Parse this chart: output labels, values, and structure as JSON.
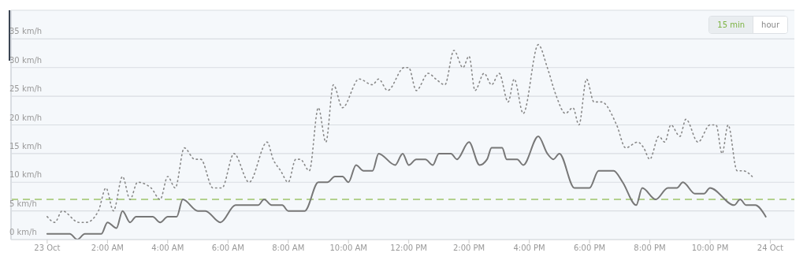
{
  "chart_data": {
    "type": "line",
    "annotations": [
      "15 min",
      "hour"
    ],
    "xlim": [
      -1.2,
      24.8
    ],
    "xticks": [
      {
        "value": 0,
        "label": "23 Oct"
      },
      {
        "value": 2,
        "label": "2:00 AM"
      },
      {
        "value": 4,
        "label": "4:00 AM"
      },
      {
        "value": 6,
        "label": "6:00 AM"
      },
      {
        "value": 8,
        "label": "8:00 AM"
      },
      {
        "value": 10,
        "label": "10:00 AM"
      },
      {
        "value": 12,
        "label": "12:00 PM"
      },
      {
        "value": 14,
        "label": "2:00 PM"
      },
      {
        "value": 16,
        "label": "4:00 PM"
      },
      {
        "value": 18,
        "label": "6:00 PM"
      },
      {
        "value": 20,
        "label": "8:00 PM"
      },
      {
        "value": 22,
        "label": "10:00 PM"
      },
      {
        "value": 24,
        "label": "24 Oct"
      }
    ],
    "ylim": [
      0,
      40
    ],
    "yticks": [
      {
        "value": 0,
        "label": "0 km/h"
      },
      {
        "value": 5,
        "label": "5 km/h"
      },
      {
        "value": 10,
        "label": "10 km/h"
      },
      {
        "value": 15,
        "label": "15 km/h"
      },
      {
        "value": 20,
        "label": "20 km/h"
      },
      {
        "value": 25,
        "label": "25 km/h"
      },
      {
        "value": 30,
        "label": "30 km/h"
      },
      {
        "value": 35,
        "label": "35 km/h"
      }
    ],
    "grid": "y",
    "marker": "none",
    "ref_lines": [
      {
        "axis": "y",
        "value": 7,
        "color": "#9dc36b",
        "line_style": "dashed"
      }
    ],
    "series": [
      {
        "color": "#777777",
        "line_style": "solid",
        "x": [
          0,
          0.75,
          1.0,
          1.25,
          1.8,
          2.0,
          2.3,
          2.5,
          2.75,
          2.95,
          3.5,
          3.75,
          4.0,
          4.3,
          4.5,
          5.0,
          5.25,
          5.75,
          6.25,
          7.0,
          7.2,
          7.45,
          7.8,
          8.0,
          8.55,
          9.0,
          9.3,
          9.55,
          9.8,
          10.0,
          10.25,
          10.5,
          10.8,
          11.0,
          11.55,
          11.8,
          12.0,
          12.25,
          12.55,
          12.8,
          13.0,
          13.4,
          13.6,
          14.0,
          14.35,
          14.6,
          14.75,
          15.1,
          15.25,
          15.6,
          15.8,
          16.3,
          16.6,
          16.8,
          17.0,
          17.5,
          18.0,
          18.3,
          18.8,
          19.1,
          19.55,
          19.75,
          20.2,
          20.6,
          20.9,
          21.1,
          21.5,
          21.8,
          22.0,
          22.8,
          23.0,
          23.2,
          23.5,
          23.85
        ],
        "values": [
          1,
          1,
          0,
          1,
          1,
          3,
          2,
          5,
          3,
          4,
          4,
          3,
          4,
          4,
          7,
          5,
          5,
          3,
          6,
          6,
          7,
          6,
          6,
          5,
          5,
          10,
          10,
          11,
          11,
          10,
          13,
          12,
          12,
          15,
          13,
          15,
          13,
          14,
          14,
          13,
          15,
          15,
          14,
          17,
          13,
          14,
          16,
          16,
          14,
          14,
          13,
          18,
          15,
          14,
          15,
          9,
          9,
          12,
          12,
          10,
          6,
          9,
          7,
          9,
          9,
          10,
          8,
          8,
          9,
          6,
          7,
          6,
          6,
          4
        ]
      },
      {
        "color": "#888888",
        "line_style": "dotted",
        "x": [
          0,
          0.25,
          0.5,
          1.05,
          1.3,
          1.7,
          1.95,
          2.2,
          2.5,
          2.75,
          3.0,
          3.45,
          3.75,
          4.0,
          4.25,
          4.55,
          4.9,
          5.1,
          5.5,
          5.8,
          6.2,
          6.7,
          7.3,
          7.5,
          7.75,
          8.0,
          8.25,
          8.4,
          8.7,
          9.0,
          9.25,
          9.5,
          9.8,
          10.35,
          10.8,
          11.0,
          11.3,
          11.85,
          12.0,
          12.25,
          12.65,
          12.9,
          13.2,
          13.5,
          13.8,
          14.0,
          14.2,
          14.5,
          14.75,
          15.0,
          15.3,
          15.5,
          15.8,
          16.3,
          16.6,
          16.9,
          17.2,
          17.45,
          17.65,
          17.9,
          18.15,
          18.4,
          18.9,
          19.2,
          19.6,
          19.8,
          20.0,
          20.3,
          20.5,
          20.7,
          21.0,
          21.2,
          21.6,
          22.0,
          22.2,
          22.4,
          22.6,
          22.9,
          23.1,
          23.4
        ],
        "values": [
          4,
          3,
          5,
          3,
          3,
          5,
          9,
          5,
          11,
          7,
          10,
          9,
          7,
          11,
          9,
          16,
          14,
          14,
          9,
          9,
          15,
          10,
          17,
          14,
          12,
          10,
          14,
          14,
          12,
          23,
          17,
          27,
          23,
          28,
          27,
          28,
          26,
          30,
          30,
          26,
          29,
          28,
          27,
          33,
          30,
          32,
          26,
          29,
          27,
          29,
          24,
          28,
          22,
          34,
          30,
          25,
          22,
          23,
          20,
          28,
          24,
          24,
          20,
          16,
          17,
          16,
          14,
          18,
          17,
          20,
          18,
          21,
          17,
          20,
          20,
          15,
          20,
          12,
          12,
          11
        ]
      }
    ]
  }
}
